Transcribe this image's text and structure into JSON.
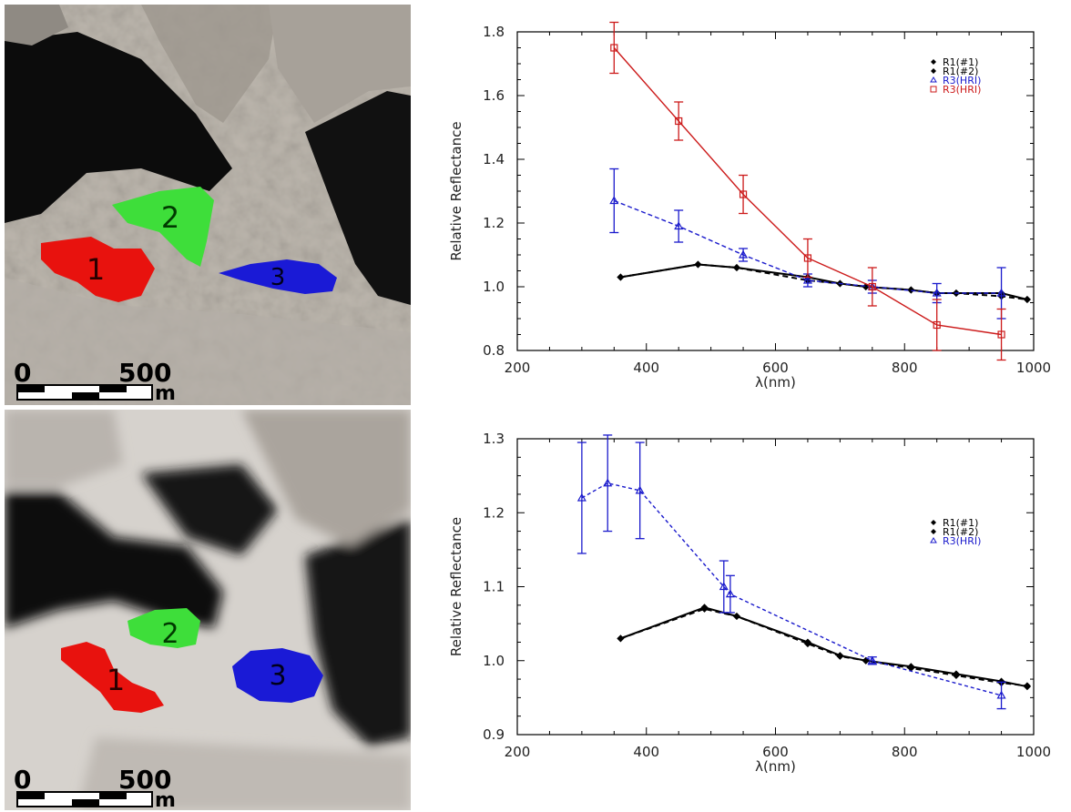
{
  "photos": [
    {
      "regions": [
        {
          "label": "1",
          "color": "#e8120e"
        },
        {
          "label": "2",
          "color": "#3ede3a"
        },
        {
          "label": "3",
          "color": "#1a1ad6"
        }
      ],
      "scalebar": {
        "start": "0",
        "end": "500",
        "unit": "m"
      }
    },
    {
      "regions": [
        {
          "label": "1",
          "color": "#e8120e"
        },
        {
          "label": "2",
          "color": "#3ede3a"
        },
        {
          "label": "3",
          "color": "#1a1ad6"
        }
      ],
      "scalebar": {
        "start": "0",
        "end": "500",
        "unit": "m"
      }
    }
  ],
  "chart_data": [
    {
      "type": "line",
      "xlabel": "λ(nm)",
      "ylabel": "Relative Reflectance",
      "xlim": [
        200,
        1000
      ],
      "ylim": [
        0.8,
        1.8
      ],
      "xticks": [
        "200",
        "400",
        "600",
        "800",
        "1000"
      ],
      "yticks": [
        "0.8",
        "1.0",
        "1.2",
        "1.4",
        "1.6",
        "1.8"
      ],
      "legend_position": "top-right",
      "series": [
        {
          "name": "R1(#1)",
          "color": "#000000",
          "marker": "diamond",
          "dash": "none",
          "x": [
            360,
            480,
            540,
            650,
            700,
            740,
            810,
            850,
            880,
            950,
            990
          ],
          "y": [
            1.03,
            1.07,
            1.06,
            1.03,
            1.01,
            1.0,
            0.99,
            0.98,
            0.98,
            0.98,
            0.96
          ],
          "err": []
        },
        {
          "name": "R1(#2)",
          "color": "#000000",
          "marker": "diamond",
          "dash": "6,4",
          "x": [
            360,
            480,
            540,
            650,
            700,
            740,
            810,
            850,
            880,
            950,
            990
          ],
          "y": [
            1.03,
            1.07,
            1.06,
            1.02,
            1.01,
            1.0,
            0.99,
            0.98,
            0.98,
            0.97,
            0.96
          ],
          "err": []
        },
        {
          "name": "R3(HRI)",
          "color": "#1a1acc",
          "marker": "triangle",
          "dash": "5,3",
          "x": [
            350,
            450,
            550,
            650,
            750,
            850,
            950
          ],
          "y": [
            1.27,
            1.19,
            1.1,
            1.02,
            1.0,
            0.98,
            0.98
          ],
          "err": [
            0.1,
            0.05,
            0.02,
            0.02,
            0.02,
            0.03,
            0.08
          ]
        },
        {
          "name": "R3(HRI)",
          "color": "#cc1a1a",
          "marker": "square",
          "dash": "none",
          "x": [
            350,
            450,
            550,
            650,
            750,
            850,
            950
          ],
          "y": [
            1.75,
            1.52,
            1.29,
            1.09,
            1.0,
            0.88,
            0.85
          ],
          "err": [
            0.08,
            0.06,
            0.06,
            0.06,
            0.06,
            0.08,
            0.08
          ]
        }
      ]
    },
    {
      "type": "line",
      "xlabel": "λ(nm)",
      "ylabel": "Relative Reflectance",
      "xlim": [
        200,
        1000
      ],
      "ylim": [
        0.9,
        1.3
      ],
      "xticks": [
        "200",
        "400",
        "600",
        "800",
        "1000"
      ],
      "yticks": [
        "0.9",
        "1.0",
        "1.1",
        "1.2",
        "1.3"
      ],
      "legend_position": "top-right",
      "series": [
        {
          "name": "R1(#1)",
          "color": "#000000",
          "marker": "diamond",
          "dash": "none",
          "x": [
            360,
            490,
            540,
            650,
            700,
            740,
            810,
            880,
            950,
            990
          ],
          "y": [
            1.03,
            1.072,
            1.06,
            1.025,
            1.007,
            1.0,
            0.992,
            0.982,
            0.972,
            0.965
          ],
          "err": []
        },
        {
          "name": "R1(#2)",
          "color": "#000000",
          "marker": "diamond",
          "dash": "6,4",
          "x": [
            360,
            490,
            540,
            650,
            700,
            740,
            810,
            880,
            950,
            990
          ],
          "y": [
            1.03,
            1.07,
            1.06,
            1.023,
            1.006,
            1.0,
            0.99,
            0.98,
            0.97,
            0.966
          ],
          "err": []
        },
        {
          "name": "R3(HRI)",
          "color": "#1a1acc",
          "marker": "triangle",
          "dash": "4,3",
          "x": [
            300,
            340,
            390,
            520,
            530,
            750,
            950
          ],
          "y": [
            1.22,
            1.24,
            1.23,
            1.1,
            1.09,
            1.0,
            0.953
          ],
          "err": [
            0.075,
            0.065,
            0.065,
            0.035,
            0.025,
            0.005,
            0.018
          ]
        }
      ]
    }
  ]
}
